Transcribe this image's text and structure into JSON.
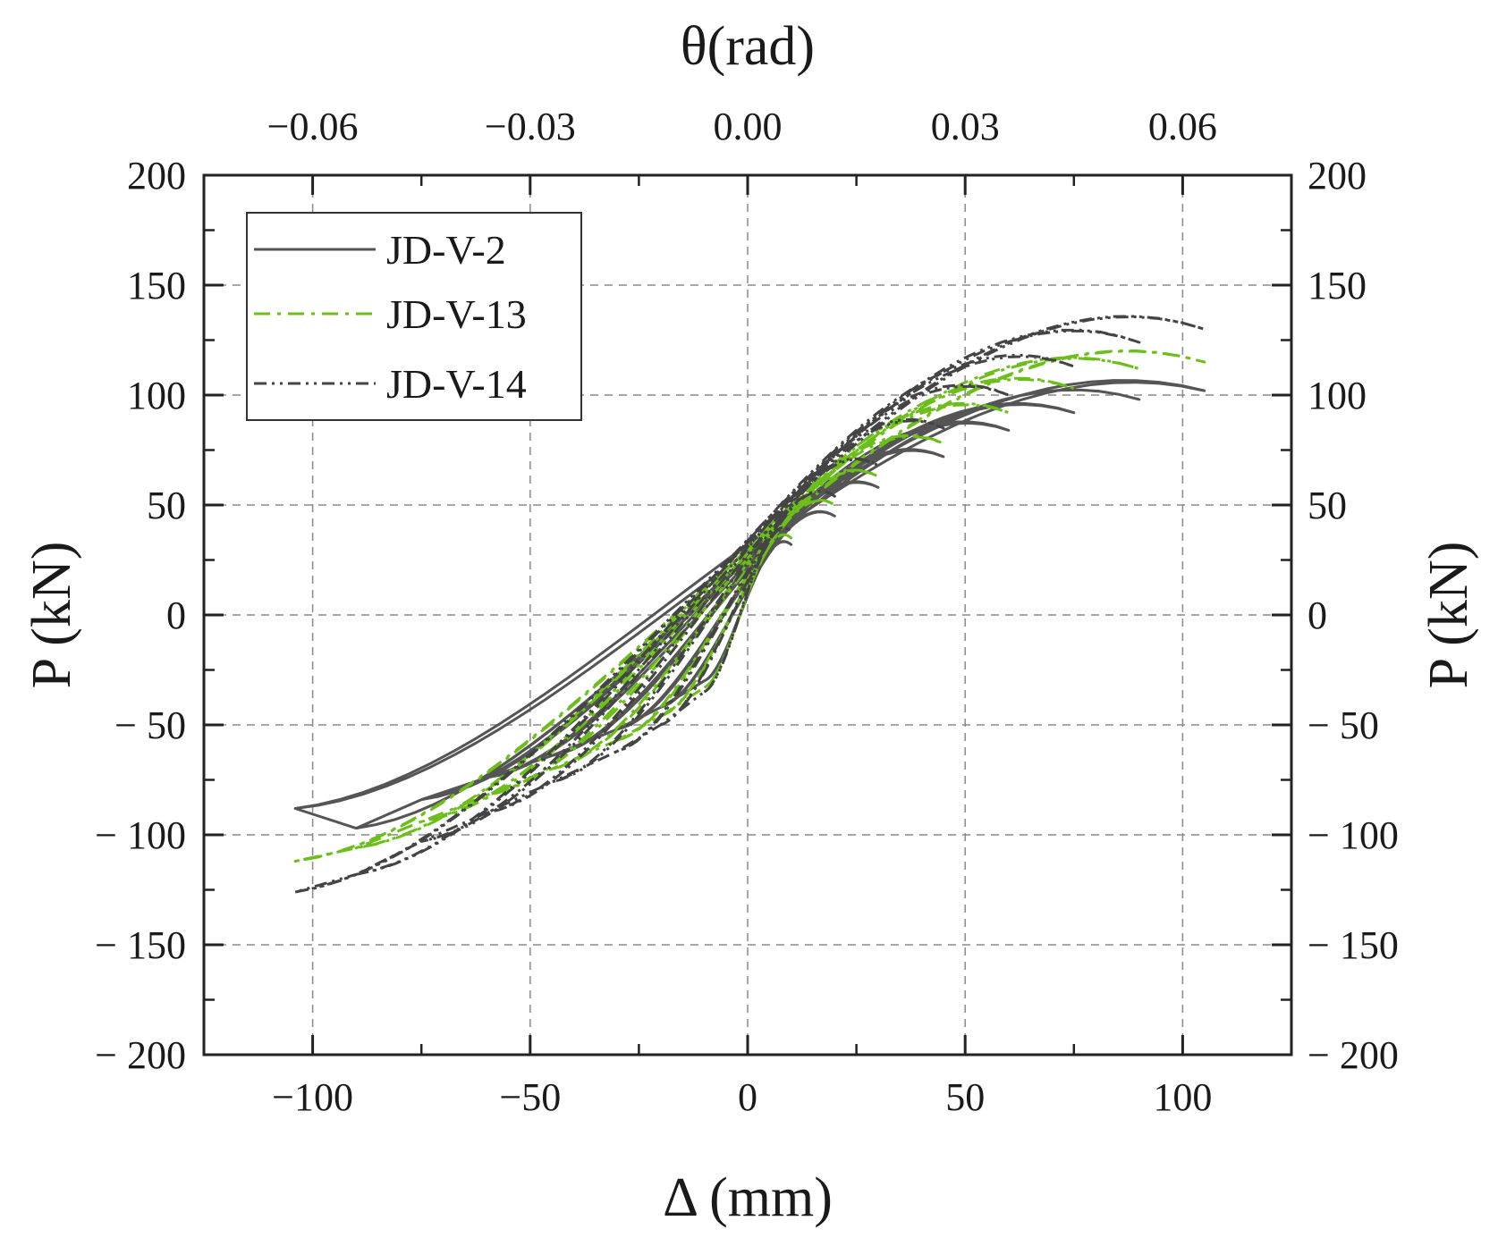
{
  "chart_data": {
    "type": "line",
    "xlabel": "Δ (mm)",
    "x2label": "θ(rad)",
    "ylabel": "P (kN)",
    "y2label": "P (kN)",
    "xlim": [
      -125,
      125
    ],
    "ylim": [
      -200,
      200
    ],
    "x2lim": [
      -0.075,
      0.075
    ],
    "grid": true,
    "legend_position": "top-left",
    "x_ticks": [
      {
        "value": -100,
        "label": "−100"
      },
      {
        "value": -50,
        "label": "−50"
      },
      {
        "value": 0,
        "label": "0"
      },
      {
        "value": 50,
        "label": "50"
      },
      {
        "value": 100,
        "label": "100"
      }
    ],
    "x2_ticks": [
      {
        "value": -0.06,
        "label": "−0.06"
      },
      {
        "value": -0.03,
        "label": "−0.03"
      },
      {
        "value": 0.0,
        "label": "0.00"
      },
      {
        "value": 0.03,
        "label": "0.03"
      },
      {
        "value": 0.06,
        "label": "0.06"
      }
    ],
    "y_ticks": [
      {
        "value": 200,
        "label": "200"
      },
      {
        "value": 150,
        "label": "150"
      },
      {
        "value": 100,
        "label": "100"
      },
      {
        "value": 50,
        "label": "50"
      },
      {
        "value": 0,
        "label": "0"
      },
      {
        "value": -50,
        "label": "− 50"
      },
      {
        "value": -100,
        "label": "− 100"
      },
      {
        "value": -150,
        "label": "− 150"
      },
      {
        "value": -200,
        "label": "− 200"
      }
    ],
    "y2_ticks": [
      {
        "value": 200,
        "label": "200"
      },
      {
        "value": 150,
        "label": "150"
      },
      {
        "value": 100,
        "label": "100"
      },
      {
        "value": 50,
        "label": "50"
      },
      {
        "value": 0,
        "label": "0"
      },
      {
        "value": -50,
        "label": "− 50"
      },
      {
        "value": -100,
        "label": "− 100"
      },
      {
        "value": -150,
        "label": "− 150"
      },
      {
        "value": -200,
        "label": "− 200"
      }
    ],
    "series": [
      {
        "name": "JD-V-2",
        "color": "#555555",
        "dash": "solid",
        "cycles": [
          {
            "amp_pos": 10,
            "p_pos": 32,
            "amp_neg": -10,
            "p_neg": -30
          },
          {
            "amp_pos": 20,
            "p_pos": 45,
            "amp_neg": -20,
            "p_neg": -42
          },
          {
            "amp_pos": 30,
            "p_pos": 58,
            "amp_neg": -30,
            "p_neg": -52
          },
          {
            "amp_pos": 45,
            "p_pos": 72,
            "amp_neg": -45,
            "p_neg": -64
          },
          {
            "amp_pos": 60,
            "p_pos": 84,
            "amp_neg": -60,
            "p_neg": -74
          },
          {
            "amp_pos": 75,
            "p_pos": 92,
            "amp_neg": -75,
            "p_neg": -84
          },
          {
            "amp_pos": 90,
            "p_pos": 98,
            "amp_neg": -90,
            "p_neg": -97
          },
          {
            "amp_pos": 105,
            "p_pos": 102,
            "amp_neg": -104,
            "p_neg": -88
          }
        ]
      },
      {
        "name": "JD-V-13",
        "color": "#6cbf1a",
        "dash": "dash-dot",
        "cycles": [
          {
            "amp_pos": 10,
            "p_pos": 35,
            "amp_neg": -10,
            "p_neg": -33
          },
          {
            "amp_pos": 20,
            "p_pos": 50,
            "amp_neg": -20,
            "p_neg": -46
          },
          {
            "amp_pos": 30,
            "p_pos": 63,
            "amp_neg": -30,
            "p_neg": -57
          },
          {
            "amp_pos": 45,
            "p_pos": 78,
            "amp_neg": -45,
            "p_neg": -70
          },
          {
            "amp_pos": 60,
            "p_pos": 92,
            "amp_neg": -60,
            "p_neg": -82
          },
          {
            "amp_pos": 75,
            "p_pos": 103,
            "amp_neg": -75,
            "p_neg": -94
          },
          {
            "amp_pos": 90,
            "p_pos": 112,
            "amp_neg": -90,
            "p_neg": -106
          },
          {
            "amp_pos": 105,
            "p_pos": 115,
            "amp_neg": -104,
            "p_neg": -112
          }
        ]
      },
      {
        "name": "JD-V-14",
        "color": "#444444",
        "dash": "dash-dot-dot",
        "cycles": [
          {
            "amp_pos": 10,
            "p_pos": 38,
            "amp_neg": -10,
            "p_neg": -35
          },
          {
            "amp_pos": 20,
            "p_pos": 54,
            "amp_neg": -20,
            "p_neg": -50
          },
          {
            "amp_pos": 30,
            "p_pos": 68,
            "amp_neg": -30,
            "p_neg": -62
          },
          {
            "amp_pos": 45,
            "p_pos": 85,
            "amp_neg": -45,
            "p_neg": -76
          },
          {
            "amp_pos": 60,
            "p_pos": 100,
            "amp_neg": -60,
            "p_neg": -90
          },
          {
            "amp_pos": 75,
            "p_pos": 113,
            "amp_neg": -75,
            "p_neg": -103
          },
          {
            "amp_pos": 90,
            "p_pos": 124,
            "amp_neg": -90,
            "p_neg": -118
          },
          {
            "amp_pos": 105,
            "p_pos": 130,
            "amp_neg": -104,
            "p_neg": -126
          }
        ]
      }
    ]
  }
}
